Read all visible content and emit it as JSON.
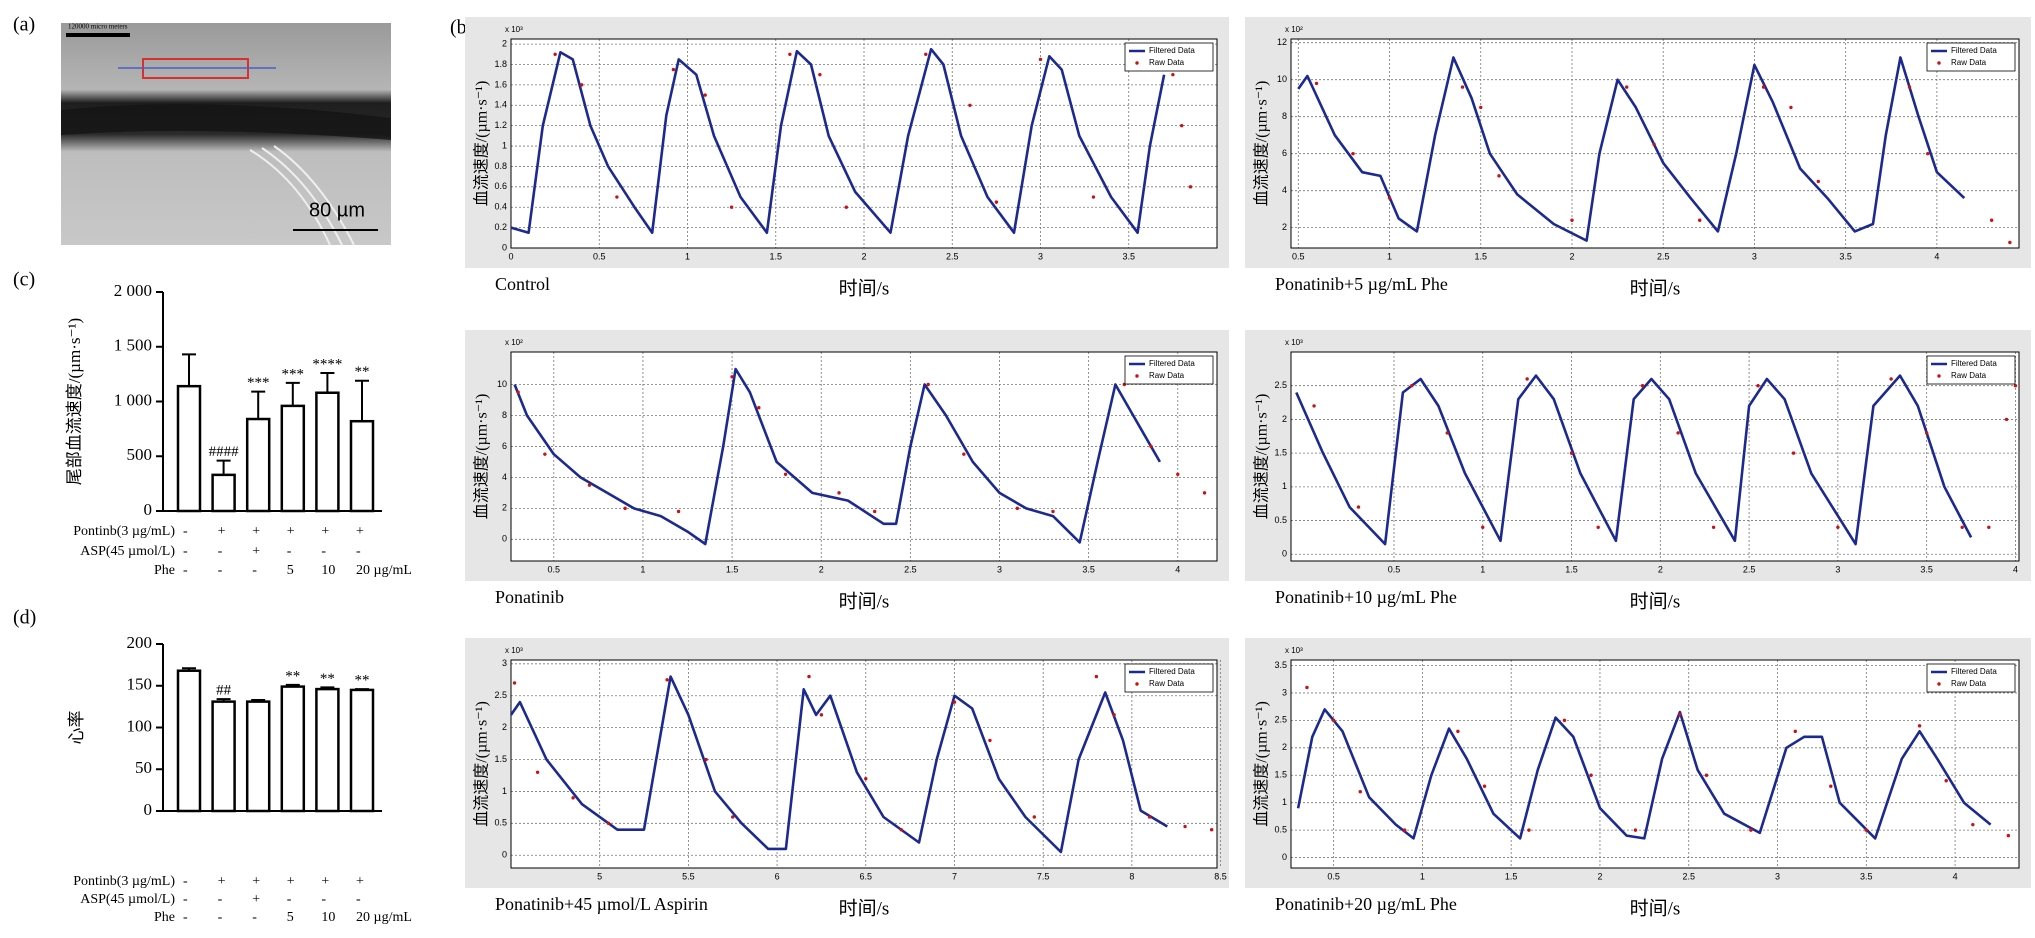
{
  "panel_labels": [
    "(a)",
    "(b)",
    "(c)",
    "(d)"
  ],
  "micrograph": {
    "header_label": "120000 micro meters",
    "scale_bar_label": "80 µm"
  },
  "chart_data": [
    {
      "type": "bar",
      "ylabel": "尾部血流速度/(µm·s⁻¹)",
      "values": [
        1140,
        330,
        840,
        960,
        1080,
        820
      ],
      "errors": [
        290,
        130,
        250,
        210,
        180,
        370
      ],
      "annotations": [
        null,
        "####",
        "***",
        "***",
        "****",
        "**"
      ],
      "ylim": [
        0,
        2000
      ],
      "yticks": [
        0,
        500,
        {
          "value": 1000,
          "label": "1 000"
        },
        {
          "value": 1500,
          "label": "1 500"
        },
        {
          "value": 2000,
          "label": "2 000"
        }
      ],
      "color": "#ffffff",
      "edgecolor": "#000000",
      "treatments": [
        {
          "name": "Pontinb(3 µg/mL)",
          "values": [
            "-",
            "+",
            "+",
            "+",
            "+",
            "+"
          ]
        },
        {
          "name": "ASP(45 µmol/L)",
          "values": [
            "-",
            "-",
            "+",
            "-",
            "-",
            "-"
          ]
        },
        {
          "name": "Phe",
          "values": [
            "-",
            "-",
            "-",
            "5",
            "10",
            "20 µg/mL"
          ]
        }
      ]
    },
    {
      "type": "bar",
      "ylabel": "心率",
      "values": [
        168,
        131,
        131,
        149,
        146,
        145
      ],
      "errors": [
        3,
        3,
        2,
        2,
        2,
        1
      ],
      "annotations": [
        null,
        "##",
        null,
        "**",
        "**",
        "**"
      ],
      "ylim": [
        0,
        200
      ],
      "yticks": [
        0,
        50,
        100,
        150,
        200
      ],
      "color": "#ffffff",
      "edgecolor": "#000000",
      "treatments": [
        {
          "name": "Pontinb(3 µg/mL)",
          "values": [
            "-",
            "+",
            "+",
            "+",
            "+",
            "+"
          ]
        },
        {
          "name": "ASP(45 µmol/L)",
          "values": [
            "-",
            "-",
            "+",
            "-",
            "-",
            "-"
          ]
        },
        {
          "name": "Phe",
          "values": [
            "-",
            "-",
            "-",
            "5",
            "10",
            "20 µg/mL"
          ]
        }
      ]
    },
    {
      "type": "line",
      "caption": "Control",
      "multiplier": "x 10³",
      "xlabel": "时间/s",
      "ylabel": "血流速度/(µm·s⁻¹)",
      "xlim": [
        0,
        4
      ],
      "xticks": [
        0,
        0.5,
        1,
        1.5,
        2,
        2.5,
        3,
        3.5
      ],
      "ylim": [
        0,
        2.05
      ],
      "yticks": [
        0,
        0.2,
        0.4,
        0.6,
        0.8,
        1,
        1.2,
        1.4,
        1.6,
        1.8,
        2
      ],
      "grid": true,
      "legend": "upper right",
      "series": [
        {
          "name": "Filtered Data",
          "color": "#1c2a8f",
          "x": [
            0,
            0.1,
            0.18,
            0.28,
            0.35,
            0.45,
            0.55,
            0.7,
            0.8,
            0.88,
            0.95,
            1.05,
            1.15,
            1.3,
            1.45,
            1.53,
            1.62,
            1.7,
            1.8,
            1.95,
            2.15,
            2.25,
            2.38,
            2.45,
            2.55,
            2.7,
            2.85,
            2.95,
            3.05,
            3.12,
            3.22,
            3.4,
            3.55,
            3.62,
            3.7
          ],
          "values": [
            0.2,
            0.15,
            1.2,
            1.92,
            1.85,
            1.2,
            0.8,
            0.4,
            0.15,
            1.3,
            1.85,
            1.7,
            1.1,
            0.5,
            0.15,
            1.2,
            1.93,
            1.8,
            1.1,
            0.55,
            0.15,
            1.1,
            1.95,
            1.8,
            1.1,
            0.5,
            0.15,
            1.2,
            1.88,
            1.75,
            1.1,
            0.5,
            0.15,
            1.0,
            1.7
          ]
        },
        {
          "name": "Raw Data",
          "color": "#cc1111",
          "x": [
            0.25,
            0.4,
            0.6,
            0.92,
            1.1,
            1.25,
            1.58,
            1.75,
            1.9,
            2.35,
            2.6,
            2.75,
            3.0,
            3.3,
            3.75,
            3.8,
            3.85
          ],
          "values": [
            1.9,
            1.6,
            0.5,
            1.75,
            1.5,
            0.4,
            1.9,
            1.7,
            0.4,
            1.9,
            1.4,
            0.45,
            1.85,
            0.5,
            1.7,
            1.2,
            0.6
          ]
        }
      ]
    },
    {
      "type": "line",
      "caption": "Ponatinib+5 µg/mL Phe",
      "multiplier": "x 10²",
      "xlabel": "时间/s",
      "ylabel": "血流速度/(µm·s⁻¹)",
      "xlim": [
        0.46,
        4.45
      ],
      "xticks": [
        0.5,
        1,
        1.5,
        2,
        2.5,
        3,
        3.5,
        4
      ],
      "ylim": [
        0.9,
        12.2
      ],
      "yticks": [
        2,
        4,
        6,
        8,
        10,
        12
      ],
      "grid": true,
      "legend": "upper right",
      "series": [
        {
          "name": "Filtered Data",
          "color": "#1c2a8f",
          "x": [
            0.5,
            0.55,
            0.7,
            0.85,
            0.95,
            1.05,
            1.15,
            1.25,
            1.35,
            1.45,
            1.55,
            1.7,
            1.9,
            2.08,
            2.15,
            2.25,
            2.35,
            2.5,
            2.65,
            2.8,
            2.9,
            3.0,
            3.1,
            3.25,
            3.4,
            3.55,
            3.65,
            3.72,
            3.8,
            3.9,
            4.0,
            4.15
          ],
          "values": [
            9.5,
            10.2,
            7,
            5,
            4.8,
            2.5,
            1.8,
            7,
            11.2,
            9,
            6,
            3.8,
            2.2,
            1.3,
            6,
            10,
            8.5,
            5.5,
            3.6,
            1.8,
            6,
            10.8,
            8.8,
            5.2,
            3.6,
            1.8,
            2.2,
            7,
            11.2,
            8,
            5,
            3.6
          ]
        },
        {
          "name": "Raw Data",
          "color": "#cc1111",
          "x": [
            0.6,
            0.8,
            1.0,
            1.4,
            1.5,
            1.6,
            2.0,
            2.3,
            2.45,
            2.7,
            3.05,
            3.2,
            3.35,
            3.85,
            3.95,
            4.3,
            4.4
          ],
          "values": [
            9.8,
            6,
            3.6,
            9.6,
            8.5,
            4.8,
            2.4,
            9.6,
            6.5,
            2.4,
            9.6,
            8.5,
            4.5,
            9.6,
            6,
            2.4,
            1.2
          ]
        }
      ]
    },
    {
      "type": "line",
      "caption": "Ponatinib",
      "multiplier": "x 10²",
      "xlabel": "时间/s",
      "ylabel": "血流速度/(µm·s⁻¹)",
      "xlim": [
        0.26,
        4.22
      ],
      "xticks": [
        0.5,
        1,
        1.5,
        2,
        2.5,
        3,
        3.5,
        4
      ],
      "ylim": [
        -1.4,
        12.1
      ],
      "yticks": [
        0,
        2,
        4,
        6,
        8,
        10
      ],
      "grid": true,
      "legend": "upper right",
      "series": [
        {
          "name": "Filtered Data",
          "color": "#1c2a8f",
          "x": [
            0.28,
            0.35,
            0.5,
            0.65,
            0.8,
            0.95,
            1.1,
            1.25,
            1.35,
            1.45,
            1.52,
            1.6,
            1.75,
            1.95,
            2.15,
            2.35,
            2.42,
            2.5,
            2.58,
            2.7,
            2.85,
            3.0,
            3.15,
            3.3,
            3.45,
            3.55,
            3.65,
            3.75,
            3.9
          ],
          "values": [
            10,
            8,
            5.5,
            4,
            3,
            2,
            1.5,
            0.5,
            -0.3,
            6,
            11,
            9.5,
            5,
            3,
            2.5,
            1,
            1,
            6,
            10,
            8,
            5,
            3,
            2,
            1.5,
            -0.2,
            5,
            10,
            8,
            5
          ]
        },
        {
          "name": "Raw Data",
          "color": "#cc1111",
          "x": [
            0.3,
            0.45,
            0.7,
            0.9,
            1.2,
            1.5,
            1.65,
            1.8,
            2.1,
            2.3,
            2.6,
            2.8,
            3.1,
            3.3,
            3.7,
            3.85,
            4.0,
            4.15
          ],
          "values": [
            9.5,
            5.5,
            3.5,
            2,
            1.8,
            10.5,
            8.5,
            4.2,
            3,
            1.8,
            10,
            5.5,
            2,
            1.8,
            10,
            6,
            4.2,
            3
          ]
        }
      ]
    },
    {
      "type": "line",
      "caption": "Ponatinib+10 µg/mL Phe",
      "multiplier": "x 10³",
      "xlabel": "时间/s",
      "ylabel": "血流速度/(µm·s⁻¹)",
      "xlim": [
        -0.08,
        4.02
      ],
      "xticks": [
        0.5,
        1,
        1.5,
        2,
        2.5,
        3,
        3.5,
        4
      ],
      "ylim": [
        -0.1,
        3
      ],
      "yticks": [
        0,
        0.5,
        1,
        1.5,
        2,
        2.5
      ],
      "grid": true,
      "legend": "upper right",
      "series": [
        {
          "name": "Filtered Data",
          "color": "#1c2a8f",
          "x": [
            -0.05,
            0.1,
            0.25,
            0.45,
            0.55,
            0.65,
            0.75,
            0.9,
            1.1,
            1.2,
            1.3,
            1.4,
            1.55,
            1.75,
            1.85,
            1.95,
            2.05,
            2.2,
            2.42,
            2.5,
            2.6,
            2.7,
            2.85,
            3.1,
            3.2,
            3.35,
            3.45,
            3.6,
            3.75
          ],
          "values": [
            2.4,
            1.5,
            0.7,
            0.15,
            2.4,
            2.6,
            2.2,
            1.2,
            0.2,
            2.3,
            2.65,
            2.3,
            1.2,
            0.2,
            2.3,
            2.6,
            2.3,
            1.2,
            0.2,
            2.2,
            2.6,
            2.3,
            1.2,
            0.15,
            2.2,
            2.65,
            2.2,
            1.0,
            0.25
          ]
        },
        {
          "name": "Raw Data",
          "color": "#cc1111",
          "x": [
            0.05,
            0.3,
            0.6,
            0.8,
            1.0,
            1.25,
            1.5,
            1.65,
            1.9,
            2.1,
            2.3,
            2.55,
            2.75,
            3.0,
            3.3,
            3.5,
            3.7,
            3.85,
            3.95,
            4.0
          ],
          "values": [
            2.2,
            0.7,
            2.5,
            1.8,
            0.4,
            2.6,
            1.5,
            0.4,
            2.5,
            1.8,
            0.4,
            2.5,
            1.5,
            0.4,
            2.6,
            1.8,
            0.4,
            0.4,
            2.0,
            2.5
          ]
        }
      ]
    },
    {
      "type": "line",
      "caption": "Ponatinib+45 µmol/L Aspirin",
      "multiplier": "x 10³",
      "xlabel": "时间/s",
      "ylabel": "血流速度/(µm·s⁻¹)",
      "xlim": [
        4.5,
        8.48
      ],
      "xticks": [
        5,
        5.5,
        6,
        6.5,
        7,
        7.5,
        8,
        8.5
      ],
      "ylim": [
        -0.2,
        3.06
      ],
      "yticks": [
        0,
        0.5,
        1,
        1.5,
        2,
        2.5,
        3
      ],
      "grid": true,
      "legend": "upper right",
      "series": [
        {
          "name": "Filtered Data",
          "color": "#1c2a8f",
          "x": [
            4.5,
            4.55,
            4.7,
            4.9,
            5.1,
            5.25,
            5.4,
            5.5,
            5.65,
            5.8,
            5.95,
            6.05,
            6.15,
            6.22,
            6.3,
            6.45,
            6.6,
            6.8,
            6.9,
            7.0,
            7.1,
            7.25,
            7.4,
            7.6,
            7.7,
            7.85,
            7.95,
            8.05,
            8.2
          ],
          "values": [
            2.2,
            2.4,
            1.5,
            0.8,
            0.4,
            0.4,
            2.8,
            2.2,
            1.0,
            0.5,
            0.1,
            0.1,
            2.6,
            2.2,
            2.5,
            1.3,
            0.6,
            0.2,
            1.5,
            2.5,
            2.3,
            1.2,
            0.6,
            0.05,
            1.5,
            2.55,
            1.8,
            0.7,
            0.45
          ]
        },
        {
          "name": "Raw Data",
          "color": "#cc1111",
          "x": [
            4.52,
            4.65,
            4.85,
            5.05,
            5.38,
            5.6,
            5.75,
            6.18,
            6.25,
            6.5,
            6.7,
            7.0,
            7.2,
            7.45,
            7.8,
            7.9,
            8.1,
            8.3,
            8.45
          ],
          "values": [
            2.7,
            1.3,
            0.9,
            0.5,
            2.75,
            1.5,
            0.6,
            2.8,
            2.2,
            1.2,
            0.4,
            2.4,
            1.8,
            0.6,
            2.8,
            2.2,
            0.6,
            0.45,
            0.4
          ]
        }
      ]
    },
    {
      "type": "line",
      "caption": "Ponatinib+20 µg/mL Phe",
      "multiplier": "x 10³",
      "xlabel": "时间/s",
      "ylabel": "血流速度/(µm·s⁻¹)",
      "xlim": [
        0.26,
        4.36
      ],
      "xticks": [
        0.5,
        1,
        1.5,
        2,
        2.5,
        3,
        3.5,
        4
      ],
      "ylim": [
        -0.19,
        3.6
      ],
      "yticks": [
        0,
        0.5,
        1,
        1.5,
        2,
        2.5,
        3,
        3.5
      ],
      "grid": true,
      "legend": "upper right",
      "series": [
        {
          "name": "Filtered Data",
          "color": "#1c2a8f",
          "x": [
            0.3,
            0.38,
            0.45,
            0.55,
            0.7,
            0.85,
            0.95,
            1.05,
            1.15,
            1.25,
            1.4,
            1.55,
            1.65,
            1.75,
            1.85,
            2.0,
            2.15,
            2.25,
            2.35,
            2.45,
            2.55,
            2.7,
            2.9,
            3.05,
            3.15,
            3.25,
            3.35,
            3.55,
            3.7,
            3.8,
            3.9,
            4.05,
            4.2
          ],
          "values": [
            0.9,
            2.2,
            2.7,
            2.3,
            1.1,
            0.6,
            0.35,
            1.5,
            2.35,
            1.8,
            0.8,
            0.35,
            1.6,
            2.55,
            2.2,
            0.9,
            0.4,
            0.35,
            1.8,
            2.65,
            1.6,
            0.8,
            0.45,
            2.0,
            2.2,
            2.2,
            1.0,
            0.35,
            1.8,
            2.3,
            1.8,
            1.0,
            0.6
          ]
        },
        {
          "name": "Raw Data",
          "color": "#cc1111",
          "x": [
            0.35,
            0.5,
            0.65,
            0.9,
            1.2,
            1.35,
            1.6,
            1.8,
            1.95,
            2.2,
            2.45,
            2.6,
            2.85,
            3.1,
            3.3,
            3.5,
            3.8,
            3.95,
            4.1,
            4.3
          ],
          "values": [
            3.1,
            2.5,
            1.2,
            0.5,
            2.3,
            1.3,
            0.5,
            2.5,
            1.5,
            0.5,
            2.6,
            1.5,
            0.5,
            2.3,
            1.3,
            0.5,
            2.4,
            1.4,
            0.6,
            0.4
          ]
        }
      ]
    }
  ]
}
